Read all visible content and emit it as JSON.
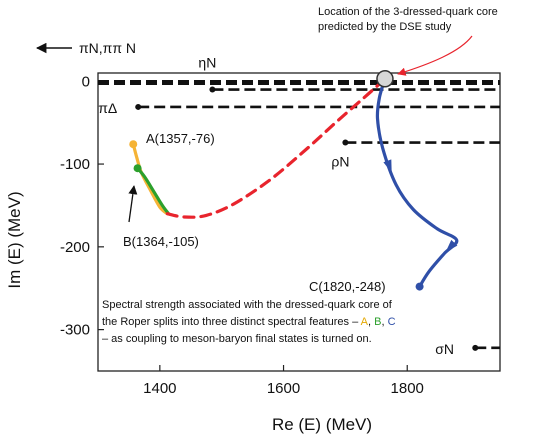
{
  "chart_data": {
    "type": "line",
    "xlabel": "Re (E)  (MeV)",
    "ylabel": "Im (E)  (MeV)",
    "xlim": [
      1300,
      1950
    ],
    "ylim": [
      -350,
      10
    ],
    "x_ticks": [
      {
        "value": 1400,
        "label": "1400"
      },
      {
        "value": 1600,
        "label": "1600"
      },
      {
        "value": 1800,
        "label": "1800"
      }
    ],
    "y_ticks": [
      {
        "value": 0,
        "label": "0"
      },
      {
        "value": -100,
        "label": "-100"
      },
      {
        "value": -200,
        "label": "-200"
      },
      {
        "value": -300,
        "label": "-300"
      }
    ],
    "grid": false,
    "legend": "none",
    "core_point": {
      "x": 1764,
      "y": 3
    },
    "series": [
      {
        "color": "#f5b335",
        "style": "solid",
        "points": [
          [
            1357,
            -76
          ],
          [
            1362,
            -90
          ],
          [
            1370,
            -110
          ],
          [
            1385,
            -132
          ],
          [
            1400,
            -152
          ],
          [
            1412,
            -160
          ]
        ]
      },
      {
        "color": "#2ca02c",
        "style": "solid",
        "points": [
          [
            1364,
            -105
          ],
          [
            1375,
            -115
          ],
          [
            1390,
            -133
          ],
          [
            1404,
            -150
          ],
          [
            1414,
            -160
          ]
        ]
      },
      {
        "color": "#e8242d",
        "style": "dashed",
        "points": [
          [
            1412,
            -160
          ],
          [
            1440,
            -164
          ],
          [
            1475,
            -162
          ],
          [
            1520,
            -148
          ],
          [
            1580,
            -118
          ],
          [
            1640,
            -80
          ],
          [
            1690,
            -46
          ],
          [
            1730,
            -20
          ],
          [
            1764,
            3
          ]
        ]
      },
      {
        "color": "#2f4fa8",
        "style": "solid",
        "arrows": true,
        "points": [
          [
            1764,
            3
          ],
          [
            1755,
            -20
          ],
          [
            1752,
            -45
          ],
          [
            1760,
            -80
          ],
          [
            1782,
            -125
          ],
          [
            1810,
            -155
          ],
          [
            1848,
            -178
          ],
          [
            1880,
            -192
          ],
          [
            1860,
            -208
          ],
          [
            1835,
            -230
          ],
          [
            1820,
            -248
          ]
        ]
      }
    ],
    "points": [
      {
        "name": "A",
        "x": 1357,
        "y": -76,
        "color": "#f5b335"
      },
      {
        "name": "B",
        "x": 1364,
        "y": -105,
        "color": "#2ca02c"
      },
      {
        "name": "C",
        "x": 1820,
        "y": -248,
        "color": "#2f4fa8"
      }
    ],
    "thresholds": [
      {
        "label": "ηN",
        "x_start": 1485,
        "y": -10
      },
      {
        "label": "πΔ",
        "x_start": 1365,
        "y": -31
      },
      {
        "label": "ρN",
        "x_start": 1700,
        "y": -74
      },
      {
        "label": "σN",
        "x_start": 1910,
        "y": -322
      }
    ],
    "top_thresholds": [
      {
        "y": 0
      },
      {
        "y": -3
      }
    ]
  },
  "labels": {
    "pi_n": "πN,ππ N",
    "point_a": "A(1357,-76)",
    "point_b": "B(1364,-105)",
    "point_c": "C(1820,-248)",
    "core_note_1": "Location of the 3-dressed-quark core",
    "core_note_2": "predicted by the DSE study",
    "caption_1": "Spectral strength associated with the dressed-quark core of",
    "caption_2_pre": "the Roper splits into three distinct spectral features – ",
    "caption_a": "A",
    "caption_comma_1": ", ",
    "caption_b": "B",
    "caption_comma_2": ", ",
    "caption_c": "C",
    "caption_3": "– as coupling to meson-baryon final states is turned on."
  },
  "colors": {
    "annotation_arrow": "#e8242d",
    "core_fill": "#d7d7d7",
    "caption_a": "#e5a800",
    "caption_b": "#2ca02c",
    "caption_c": "#2f4fa8"
  }
}
